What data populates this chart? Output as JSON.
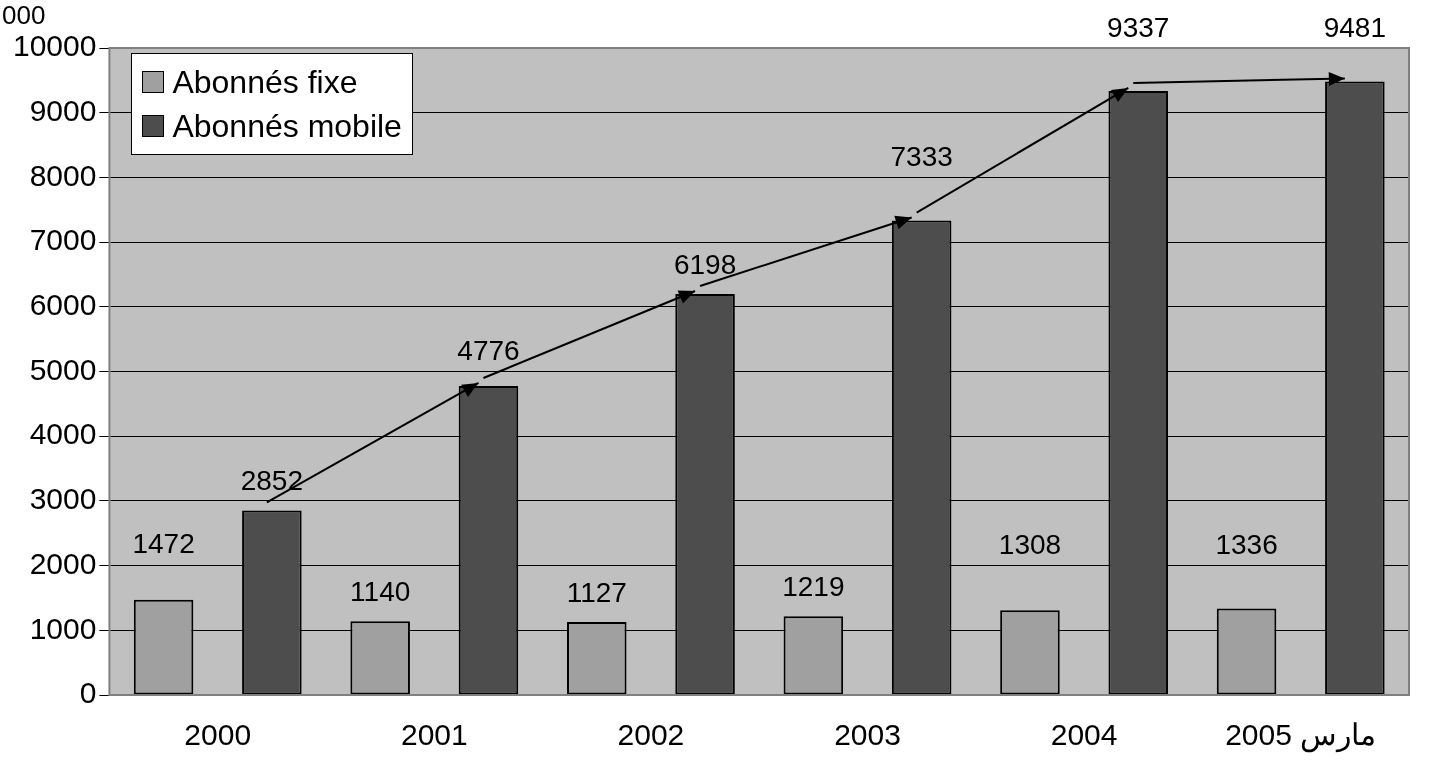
{
  "chart_data": {
    "type": "bar",
    "ylabel": "000",
    "categories": [
      "2000",
      "2001",
      "2002",
      "2003",
      "2004",
      "2005 مارس"
    ],
    "series": [
      {
        "name": "Abonnés fixe",
        "color": "#a0a0a0",
        "values": [
          1472,
          1140,
          1127,
          1219,
          1308,
          1336
        ]
      },
      {
        "name": "Abonnés mobile",
        "color": "#4d4d4d",
        "values": [
          2852,
          4776,
          6198,
          7333,
          9337,
          9481
        ]
      }
    ],
    "ylim": [
      0,
      10000
    ],
    "yticks": [
      0,
      1000,
      2000,
      3000,
      4000,
      5000,
      6000,
      7000,
      8000,
      9000,
      10000
    ],
    "grid": "y",
    "legend": "top left",
    "data_labels": true
  }
}
